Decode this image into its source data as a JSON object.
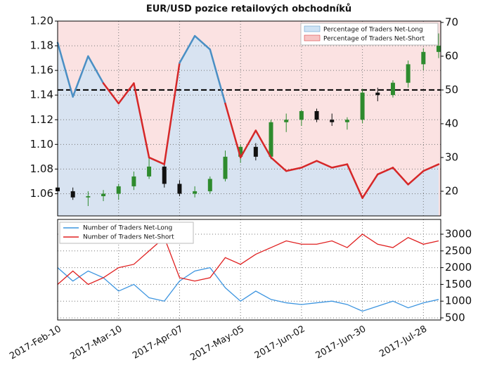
{
  "chart_data": [
    {
      "type": "candlestick",
      "title": "EUR/USD pozice retailových obchodníků",
      "open": [
        1.065,
        1.062,
        1.057,
        1.058,
        1.06,
        1.066,
        1.074,
        1.082,
        1.068,
        1.06,
        1.062,
        1.072,
        1.09,
        1.098,
        1.09,
        1.118,
        1.12,
        1.127,
        1.12,
        1.118,
        1.12,
        1.142,
        1.14,
        1.15,
        1.165,
        1.175
      ],
      "high": [
        1.068,
        1.065,
        1.062,
        1.063,
        1.068,
        1.078,
        1.09,
        1.087,
        1.071,
        1.066,
        1.074,
        1.095,
        1.1,
        1.101,
        1.12,
        1.125,
        1.128,
        1.129,
        1.125,
        1.122,
        1.145,
        1.146,
        1.152,
        1.168,
        1.178,
        1.19
      ],
      "low": [
        1.058,
        1.055,
        1.05,
        1.054,
        1.055,
        1.063,
        1.072,
        1.065,
        1.058,
        1.057,
        1.06,
        1.07,
        1.085,
        1.087,
        1.088,
        1.11,
        1.115,
        1.118,
        1.115,
        1.112,
        1.117,
        1.135,
        1.138,
        1.146,
        1.16,
        1.17
      ],
      "close": [
        1.062,
        1.057,
        1.058,
        1.06,
        1.066,
        1.074,
        1.082,
        1.068,
        1.06,
        1.062,
        1.072,
        1.09,
        1.098,
        1.09,
        1.118,
        1.12,
        1.127,
        1.12,
        1.118,
        1.12,
        1.142,
        1.14,
        1.15,
        1.165,
        1.175,
        1.18
      ],
      "up_color": "#2e8b2e",
      "down_color": "#111111",
      "ylim": [
        1.042,
        1.2
      ],
      "yticks": [
        1.06,
        1.08,
        {
          "value": 1.1,
          "label": "1.10"
        },
        1.12,
        1.14,
        1.16,
        1.18,
        {
          "value": 1.2,
          "label": "1.20"
        }
      ],
      "y2lim": [
        12.7,
        70.4
      ],
      "y2ticks": [
        20,
        30,
        40,
        50,
        60,
        70
      ],
      "percent": {
        "axis": "y2",
        "values": [
          64,
          48,
          60,
          52,
          46,
          52,
          30,
          28,
          58,
          66,
          62,
          46,
          30,
          38,
          30,
          26,
          27,
          29,
          27,
          28,
          18,
          25,
          27,
          22,
          26,
          28
        ]
      },
      "reference_line": 50,
      "legend": [
        {
          "name": "Percentage of Traders Net-Long",
          "color": "#4a8fc4",
          "fill": "#cfe3f5"
        },
        {
          "name": "Percentage of Traders Net-Short",
          "color": "#d62728",
          "fill": "#f7c5c5"
        }
      ],
      "grid": true
    },
    {
      "type": "line",
      "categories": [
        "2017-Feb-10",
        null,
        null,
        null,
        "2017-Mar-10",
        null,
        null,
        null,
        "2017-Apr-07",
        null,
        null,
        null,
        "2017-May-05",
        null,
        null,
        null,
        "2017-Jun-02",
        null,
        null,
        null,
        "2017-Jun-30",
        null,
        null,
        null,
        "2017-Jul-28",
        null
      ],
      "series": [
        {
          "name": "Number of Traders Net-Long",
          "color": "#3d95e0",
          "values": [
            2000,
            1600,
            1900,
            1700,
            1300,
            1500,
            1100,
            1000,
            1600,
            1900,
            2000,
            1400,
            1000,
            1300,
            1050,
            950,
            900,
            950,
            1000,
            900,
            700,
            850,
            1000,
            800,
            950,
            1050
          ]
        },
        {
          "name": "Number of Traders Net-Short",
          "color": "#e02020",
          "values": [
            1500,
            1900,
            1500,
            1700,
            2000,
            2100,
            2500,
            2900,
            1700,
            1600,
            1700,
            2300,
            2100,
            2400,
            2600,
            2800,
            2700,
            2700,
            2800,
            2600,
            3000,
            2700,
            2600,
            2900,
            2700,
            2800
          ]
        }
      ],
      "ylim": [
        437,
        3441
      ],
      "yticks": [
        500,
        1000,
        1500,
        2000,
        2500,
        3000
      ],
      "grid": true
    }
  ]
}
